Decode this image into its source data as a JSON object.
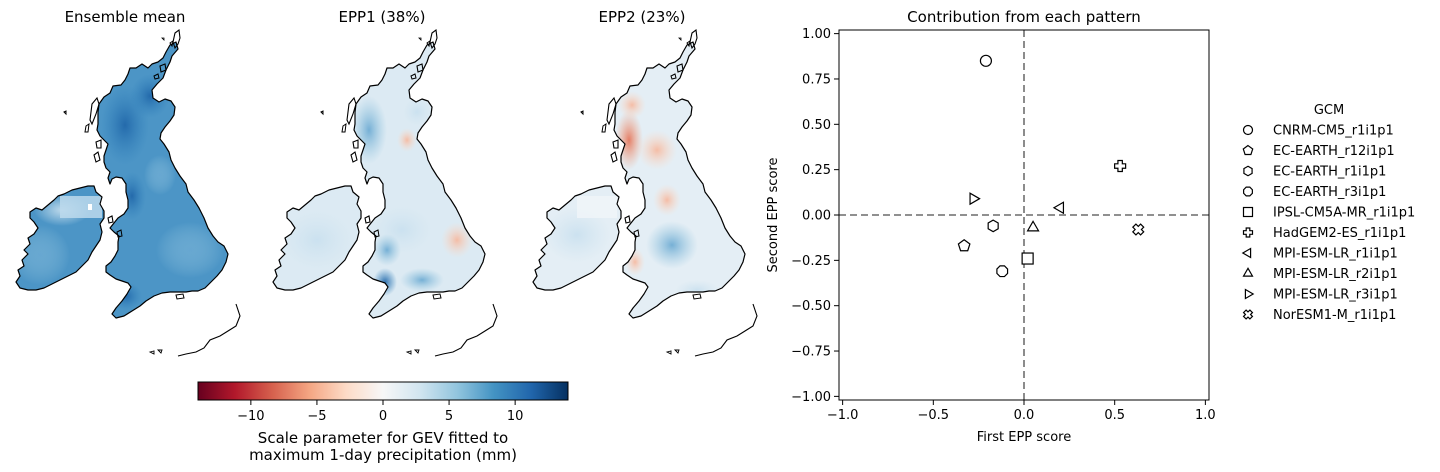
{
  "maps": {
    "panels": [
      {
        "title": "Ensemble mean"
      },
      {
        "title": "EPP1 (38%)"
      },
      {
        "title": "EPP2 (23%)"
      }
    ],
    "colorbar": {
      "label_line1": "Scale parameter for GEV fitted to",
      "label_line2": "maximum 1-day precipitation (mm)",
      "range": [
        -14,
        14
      ],
      "ticks": [
        -10,
        -5,
        0,
        5,
        10
      ],
      "tick_labels": [
        "−10",
        "−5",
        "0",
        "5",
        "10"
      ],
      "colormap": "RdBu",
      "colors": [
        "#67001f",
        "#b2182b",
        "#d6604d",
        "#f4a582",
        "#fddbc7",
        "#f7f7f7",
        "#d1e5f0",
        "#92c5de",
        "#4393c3",
        "#2166ac",
        "#053061"
      ]
    }
  },
  "chart_data": {
    "type": "scatter",
    "title": "Contribution from each pattern",
    "xlabel": "First EPP score",
    "ylabel": "Second EPP score",
    "xlim": [
      -1.02,
      1.02
    ],
    "ylim": [
      -1.02,
      1.02
    ],
    "xticks": [
      -1.0,
      -0.5,
      0.0,
      0.5,
      1.0
    ],
    "xtick_labels": [
      "−1.0",
      "−0.5",
      "0.0",
      "0.5",
      "1.0"
    ],
    "yticks": [
      1.0,
      0.75,
      0.5,
      0.25,
      0.0,
      -0.25,
      -0.5,
      -0.75,
      -1.0
    ],
    "ytick_labels": [
      "1.00",
      "0.75",
      "0.50",
      "0.25",
      "0.00",
      "−0.25",
      "−0.50",
      "−0.75",
      "−1.00"
    ],
    "reference_lines": {
      "x": 0,
      "y": 0,
      "style": "dashed",
      "color": "#808080"
    },
    "legend": {
      "title": "GCM",
      "placement": "outside-right"
    },
    "series": [
      {
        "name": "CNRM-CM5_r1i1p1",
        "marker": "circle",
        "x": -0.21,
        "y": 0.85
      },
      {
        "name": "EC-EARTH_r12i1p1",
        "marker": "pentagon",
        "x": -0.33,
        "y": -0.17
      },
      {
        "name": "EC-EARTH_r1i1p1",
        "marker": "hexagon",
        "x": -0.17,
        "y": -0.06
      },
      {
        "name": "EC-EARTH_r3i1p1",
        "marker": "octagon",
        "x": -0.12,
        "y": -0.31
      },
      {
        "name": "IPSL-CM5A-MR_r1i1p1",
        "marker": "square",
        "x": 0.02,
        "y": -0.24
      },
      {
        "name": "HadGEM2-ES_r1i1p1",
        "marker": "plus",
        "x": 0.53,
        "y": 0.27
      },
      {
        "name": "MPI-ESM-LR_r1i1p1",
        "marker": "triangle-left",
        "x": 0.2,
        "y": 0.04
      },
      {
        "name": "MPI-ESM-LR_r2i1p1",
        "marker": "triangle-up",
        "x": 0.05,
        "y": -0.07
      },
      {
        "name": "MPI-ESM-LR_r3i1p1",
        "marker": "triangle-right",
        "x": -0.28,
        "y": 0.09
      },
      {
        "name": "NorESM1-M_r1i1p1",
        "marker": "x-filled",
        "x": 0.63,
        "y": -0.08
      }
    ]
  }
}
